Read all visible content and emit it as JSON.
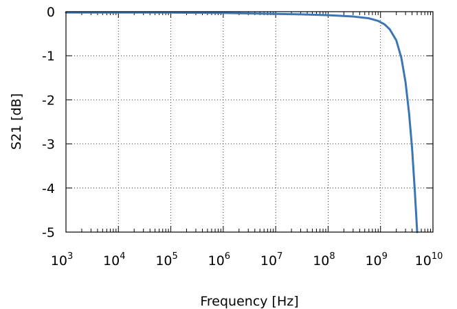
{
  "chart_data": {
    "type": "line",
    "title": "",
    "xlabel": "Frequency [Hz]",
    "ylabel": "S21 [dB]",
    "xscale": "log",
    "xlim": [
      1000,
      10000000000
    ],
    "ylim": [
      -5,
      0
    ],
    "grid": true,
    "legend": "none",
    "x_tick_labels": [
      {
        "value": 1000,
        "base": "10",
        "exp": "3"
      },
      {
        "value": 10000,
        "base": "10",
        "exp": "4"
      },
      {
        "value": 100000,
        "base": "10",
        "exp": "5"
      },
      {
        "value": 1000000,
        "base": "10",
        "exp": "6"
      },
      {
        "value": 10000000,
        "base": "10",
        "exp": "7"
      },
      {
        "value": 100000000,
        "base": "10",
        "exp": "8"
      },
      {
        "value": 1000000000,
        "base": "10",
        "exp": "9"
      },
      {
        "value": 10000000000,
        "base": "10",
        "exp": "10"
      }
    ],
    "y_tick_labels": [
      {
        "value": 0,
        "label": "0"
      },
      {
        "value": -1,
        "label": "-1"
      },
      {
        "value": -2,
        "label": "-2"
      },
      {
        "value": -3,
        "label": "-3"
      },
      {
        "value": -4,
        "label": "-4"
      },
      {
        "value": -5,
        "label": "-5"
      }
    ],
    "series": [
      {
        "color": "#3a76b5",
        "x": [
          1000,
          10000,
          100000,
          1000000,
          10000000,
          30000000,
          100000000,
          300000000,
          600000000,
          900000000,
          1200000000,
          1500000000,
          2000000000,
          2500000000,
          3000000000,
          3500000000,
          4000000000,
          4500000000,
          5000000000
        ],
        "y": [
          -0.02,
          -0.02,
          -0.02,
          -0.03,
          -0.05,
          -0.06,
          -0.08,
          -0.11,
          -0.15,
          -0.21,
          -0.29,
          -0.4,
          -0.65,
          -1.05,
          -1.6,
          -2.3,
          -3.1,
          -4.05,
          -5.0
        ]
      }
    ]
  }
}
